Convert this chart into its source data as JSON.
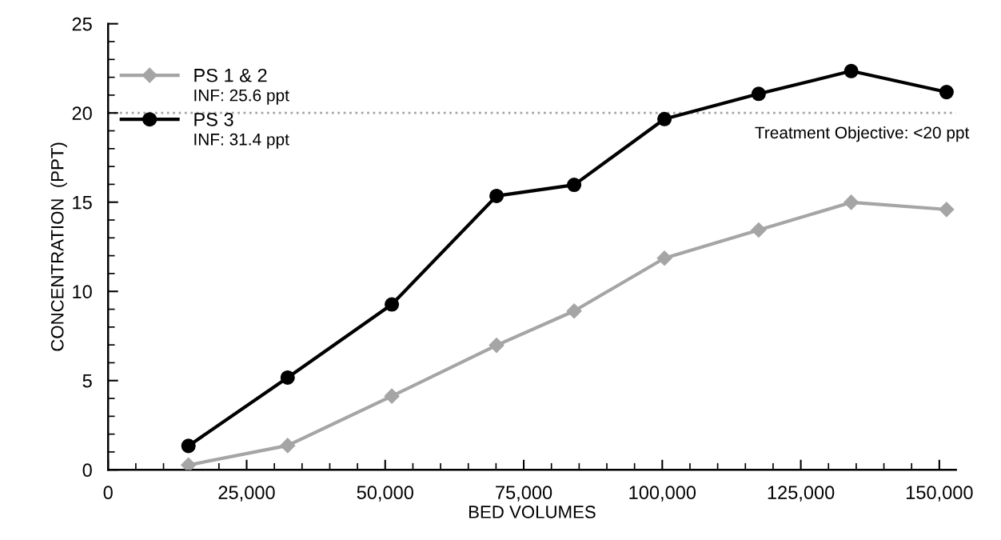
{
  "chart_data": {
    "type": "line",
    "x": [
      14500,
      32400,
      51200,
      70100,
      84100,
      100400,
      117400,
      134100,
      151300
    ],
    "series": [
      {
        "name": "PS 1 & 2",
        "color": "#a5a5a5",
        "marker": "diamond",
        "values": [
          0.27,
          1.36,
          4.13,
          6.98,
          8.9,
          11.86,
          13.44,
          14.99,
          14.59
        ]
      },
      {
        "name": "PS 3",
        "color": "#000000",
        "marker": "circle",
        "values": [
          1.34,
          5.17,
          9.27,
          15.35,
          15.97,
          19.66,
          21.07,
          22.35,
          21.17
        ]
      }
    ],
    "xlabel": "BED VOLUMES",
    "ylabel": "CONCENTRATION  (PPT)",
    "xlim": [
      0,
      153000
    ],
    "ylim": [
      0,
      25
    ],
    "xticks": [
      {
        "value": 0,
        "label": "0"
      },
      {
        "value": 25000,
        "label": "25,000"
      },
      {
        "value": 50000,
        "label": "50,000"
      },
      {
        "value": 75000,
        "label": "75,000"
      },
      {
        "value": 100000,
        "label": "100,000"
      },
      {
        "value": 125000,
        "label": "125,000"
      },
      {
        "value": 150000,
        "label": "150,000"
      }
    ],
    "yticks": [
      0,
      5,
      10,
      15,
      20,
      25
    ],
    "ref_lines": [
      {
        "axis": "y",
        "value": 20,
        "label": "Treatment Objective: <20 ppt",
        "color": "#a5a5a5",
        "line_style": "dotted"
      }
    ],
    "annotations": [
      "INF: 25.6 ppt",
      "INF: 31.4 ppt"
    ],
    "legend": "top left",
    "grid": false,
    "line_style": "solid"
  }
}
